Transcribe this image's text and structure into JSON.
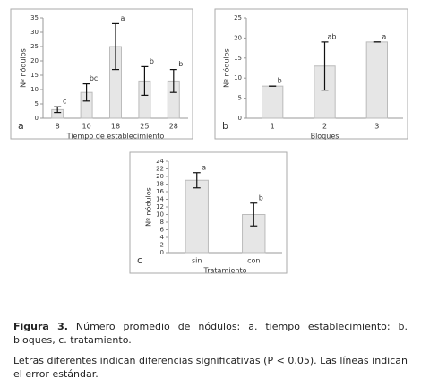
{
  "chart_data": [
    {
      "type": "bar",
      "panel": "a",
      "ylabel": "Nº nódulos",
      "xlabel": "Tiempo de establecimiento",
      "categories": [
        "8",
        "10",
        "18",
        "25",
        "28"
      ],
      "values": [
        3,
        9,
        25,
        13,
        13
      ],
      "errors": [
        1,
        3,
        8,
        5,
        4
      ],
      "value_labels": [
        "c",
        "bc",
        "a",
        "b",
        "b"
      ],
      "ylim": [
        0,
        35
      ],
      "yticks": [
        0,
        5,
        10,
        15,
        20,
        25,
        30,
        35
      ],
      "color": "#e6e6e6"
    },
    {
      "type": "bar",
      "panel": "b",
      "ylabel": "Nº nódulos",
      "xlabel": "Bloques",
      "categories": [
        "1",
        "2",
        "3"
      ],
      "values": [
        8,
        13,
        19
      ],
      "errors": [
        0,
        6,
        0
      ],
      "value_labels": [
        "b",
        "ab",
        "a"
      ],
      "ylim": [
        0,
        25
      ],
      "yticks": [
        0,
        5,
        10,
        15,
        20,
        25
      ],
      "color": "#e6e6e6"
    },
    {
      "type": "bar",
      "panel": "c",
      "ylabel": "Nº nódulos",
      "xlabel": "Tratamiento",
      "categories": [
        "sin",
        "con"
      ],
      "values": [
        19,
        10
      ],
      "errors": [
        2,
        3
      ],
      "value_labels": [
        "a",
        "b"
      ],
      "ylim": [
        0,
        24
      ],
      "yticks": [
        0,
        2,
        4,
        6,
        8,
        10,
        12,
        14,
        16,
        18,
        20,
        22,
        24
      ],
      "color": "#e6e6e6"
    }
  ],
  "caption": {
    "label": "Figura 3.",
    "text": "Número promedio de nódulos: a. tiempo establecimiento: b. bloques, c. tratamiento.",
    "note": "Letras diferentes indican diferencias significativas (P < 0.05). Las líneas indican el error estándar."
  }
}
